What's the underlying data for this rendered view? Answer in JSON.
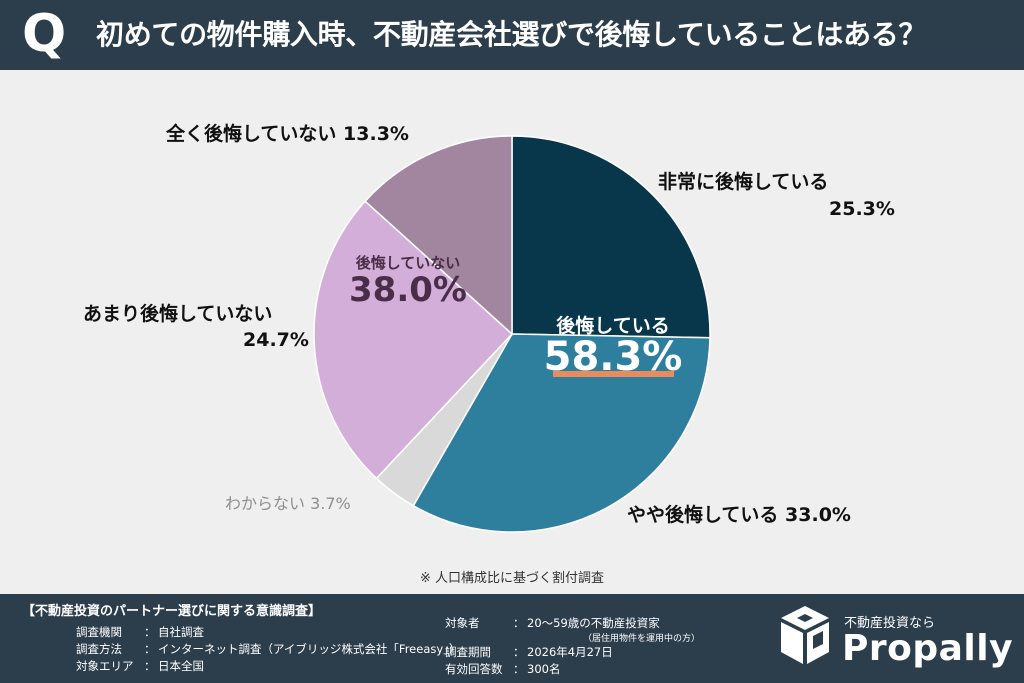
{
  "header": {
    "q_letter": "Q",
    "question": "初めての物件購入時、不動産会社選びで後悔していることはある？"
  },
  "chart_data": {
    "type": "pie",
    "unit": "%",
    "slices": [
      {
        "label": "非常に後悔している",
        "value": 25.3,
        "color": "#08364a"
      },
      {
        "label": "やや後悔している",
        "value": 33.0,
        "color": "#2e7f9d"
      },
      {
        "label": "わからない",
        "value": 3.7,
        "color": "#d9d9d9"
      },
      {
        "label": "あまり後悔していない",
        "value": 24.7,
        "color": "#d3aed8"
      },
      {
        "label": "全く後悔していない",
        "value": 13.3,
        "color": "#a2859f"
      }
    ],
    "labels": {
      "very": {
        "name": "非常に後悔している",
        "pct": "25.3%"
      },
      "somewhat": {
        "name": "やや後悔している 33.0%"
      },
      "unknown": {
        "name": "わからない 3.7%"
      },
      "notmuch": {
        "name": "あまり後悔していない",
        "pct": "24.7%"
      },
      "notatall": {
        "name": "全く後悔していない 13.3%"
      }
    },
    "groups": {
      "regret": {
        "label": "後悔している",
        "value": "58.3%"
      },
      "no_regret": {
        "label": "後悔していない",
        "value": "38.0%"
      }
    },
    "accent_color": "#ec8a5a"
  },
  "note": "※ 人口構成比に基づく割付調査",
  "footer": {
    "title": "【不動産投資のパートナー選びに関する意識調査】",
    "left": [
      {
        "key": "調査機関",
        "value": "自社調査"
      },
      {
        "key": "調査方法",
        "value": "インターネット調査（アイブリッジ株式会社「Freeasy」）"
      },
      {
        "key": "対象エリア",
        "value": "日本全国"
      }
    ],
    "right": [
      {
        "key": "対象者",
        "value": "20〜59歳の不動産投資家"
      },
      {
        "key": "調査期間",
        "value": "2026年4月27日"
      },
      {
        "key": "有効回答数",
        "value": "300名"
      }
    ],
    "target_note": "（居住用物件を運用中の方）"
  },
  "brand": {
    "tagline": "不動産投資なら",
    "name": "Propally"
  }
}
